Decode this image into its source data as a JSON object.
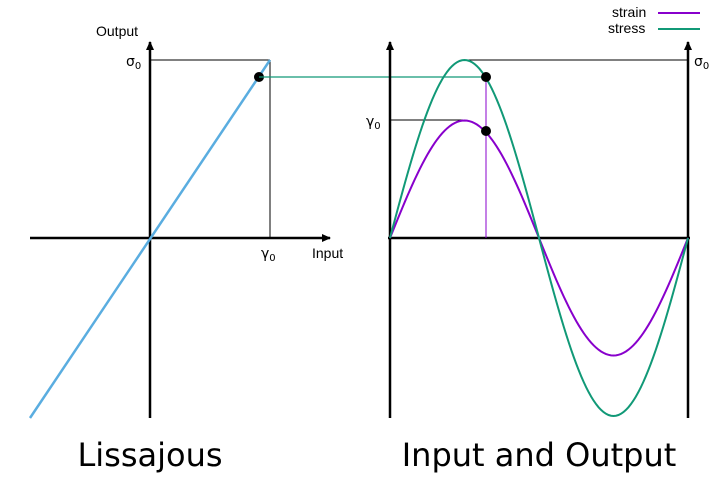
{
  "titles": {
    "left": "Lissajous",
    "right": "Input and Output"
  },
  "left_plot": {
    "y_axis_label": "Output",
    "x_axis_label": "Input",
    "y_marker": "σ",
    "y_marker_sub": "0",
    "x_marker": "γ",
    "x_marker_sub": "0"
  },
  "right_plot": {
    "y_marker_left": "γ",
    "y_marker_left_sub": "0",
    "y_marker_right": "σ",
    "y_marker_right_sub": "0"
  },
  "legend": {
    "strain": "strain",
    "stress": "stress"
  },
  "colors": {
    "lissajous_line": "#5aade0",
    "strain": "#8800cc",
    "stress": "#119977",
    "axis": "#000000"
  },
  "chart_data": {
    "type": "line",
    "amplitudes": {
      "strain": 0.66,
      "stress": 1.0
    },
    "phase": 0,
    "period": "one full cycle"
  }
}
